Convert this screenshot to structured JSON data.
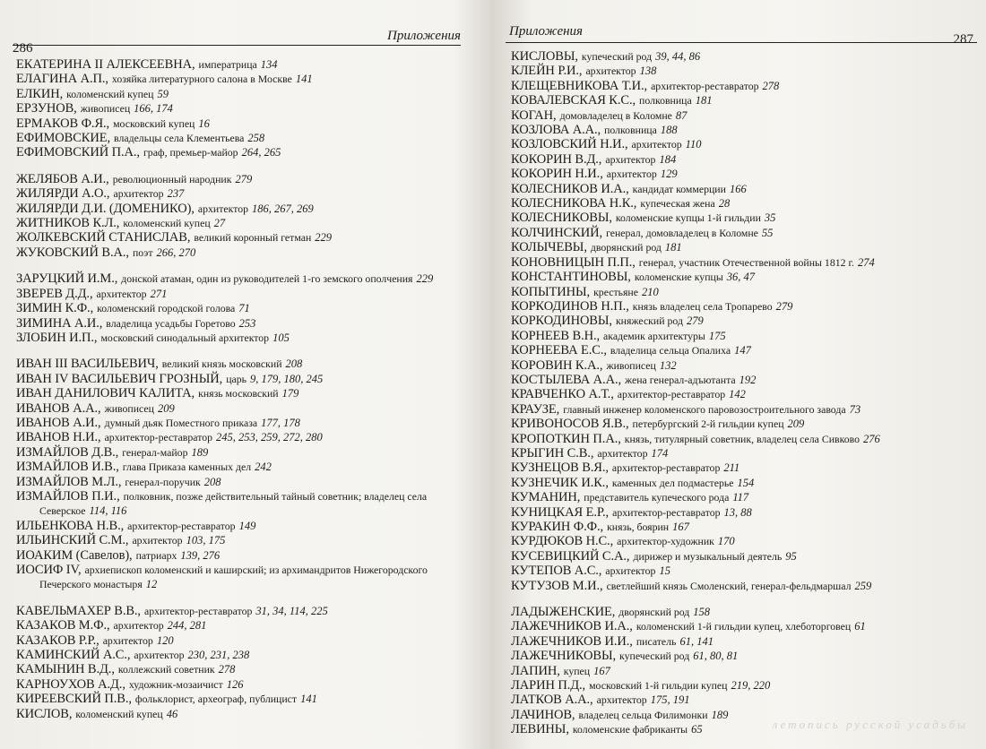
{
  "left_page": {
    "header": "Приложения",
    "page_number": "286",
    "groups": [
      [
        {
          "name": "ЕКАТЕРИНА II АЛЕКСЕЕВНА,",
          "desc": "императрица",
          "pages": "134"
        },
        {
          "name": "ЕЛАГИНА А.П.,",
          "desc": "хозяйка литературного салона в Москве",
          "pages": "141"
        },
        {
          "name": "ЕЛКИН,",
          "desc": "коломенский купец",
          "pages": "59"
        },
        {
          "name": "ЕРЗУНОВ,",
          "desc": "живописец",
          "pages": "166, 174"
        },
        {
          "name": "ЕРМАКОВ Ф.Я.,",
          "desc": "московский купец",
          "pages": "16"
        },
        {
          "name": "ЕФИМОВСКИЕ,",
          "desc": "владельцы села Клементьева",
          "pages": "258"
        },
        {
          "name": "ЕФИМОВСКИЙ П.А.,",
          "desc": "граф, премьер-майор",
          "pages": "264, 265"
        }
      ],
      [
        {
          "name": "ЖЕЛЯБОВ А.И.,",
          "desc": "революционный народник",
          "pages": "279"
        },
        {
          "name": "ЖИЛЯРДИ А.О.,",
          "desc": "архитектор",
          "pages": "237"
        },
        {
          "name": "ЖИЛЯРДИ Д.И. (ДОМЕНИКО),",
          "desc": "архитектор",
          "pages": "186, 267, 269"
        },
        {
          "name": "ЖИТНИКОВ К.Л.,",
          "desc": "коломенский купец",
          "pages": "27"
        },
        {
          "name": "ЖОЛКЕВСКИЙ СТАНИСЛАВ,",
          "desc": "великий коронный гетман",
          "pages": "229"
        },
        {
          "name": "ЖУКОВСКИЙ В.А.,",
          "desc": "поэт",
          "pages": "266, 270"
        }
      ],
      [
        {
          "name": "ЗАРУЦКИЙ И.М.,",
          "desc": "донской атаман, один из руководителей 1-го земского ополчения",
          "pages": "229"
        },
        {
          "name": "ЗВЕРЕВ Д.Д.,",
          "desc": "архитектор",
          "pages": "271"
        },
        {
          "name": "ЗИМИН К.Ф.,",
          "desc": "коломенский городской голова",
          "pages": "71"
        },
        {
          "name": "ЗИМИНА А.И.,",
          "desc": "владелица усадьбы Горетово",
          "pages": "253"
        },
        {
          "name": "ЗЛОБИН И.П.,",
          "desc": "московский синодальный архитектор",
          "pages": "105"
        }
      ],
      [
        {
          "name": "ИВАН III ВАСИЛЬЕВИЧ,",
          "desc": "великий князь московский",
          "pages": "208"
        },
        {
          "name": "ИВАН IV ВАСИЛЬЕВИЧ ГРОЗНЫЙ,",
          "desc": "царь",
          "pages": "9, 179, 180, 245"
        },
        {
          "name": "ИВАН ДАНИЛОВИЧ КАЛИТА,",
          "desc": "князь московский",
          "pages": "179"
        },
        {
          "name": "ИВАНОВ А.А.,",
          "desc": "живописец",
          "pages": "209"
        },
        {
          "name": "ИВАНОВ А.И.,",
          "desc": "думный дьяк Поместного приказа",
          "pages": "177, 178"
        },
        {
          "name": "ИВАНОВ Н.И.,",
          "desc": "архитектор-реставратор",
          "pages": "245, 253, 259, 272, 280"
        },
        {
          "name": "ИЗМАЙЛОВ Д.В.,",
          "desc": "генерал-майор",
          "pages": "189"
        },
        {
          "name": "ИЗМАЙЛОВ И.В.,",
          "desc": "глава Приказа каменных дел",
          "pages": "242"
        },
        {
          "name": "ИЗМАЙЛОВ М.Л.,",
          "desc": "генерал-поручик",
          "pages": "208"
        },
        {
          "name": "ИЗМАЙЛОВ П.И.,",
          "desc": "полковник, позже действительный тайный советник; владелец села Северское",
          "pages": "114, 116"
        },
        {
          "name": "ИЛЬЕНКОВА Н.В.,",
          "desc": "архитектор-реставратор",
          "pages": "149"
        },
        {
          "name": "ИЛЬИНСКИЙ С.М.,",
          "desc": "архитектор",
          "pages": "103, 175"
        },
        {
          "name": "ИОАКИМ (Савелов),",
          "desc": "патриарх",
          "pages": "139, 276"
        },
        {
          "name": "ИОСИФ IV,",
          "desc": "архиепископ коломенский и каширский; из архимандритов Нижегородского Печерского монастыря",
          "pages": "12"
        }
      ],
      [
        {
          "name": "КАВЕЛЬМАХЕР В.В.,",
          "desc": "архитектор-реставратор",
          "pages": "31, 34, 114, 225"
        },
        {
          "name": "КАЗАКОВ М.Ф.,",
          "desc": "архитектор",
          "pages": "244, 281"
        },
        {
          "name": "КАЗАКОВ Р.Р.,",
          "desc": "архитектор",
          "pages": "120"
        },
        {
          "name": "КАМИНСКИЙ А.С.,",
          "desc": "архитектор",
          "pages": "230, 231, 238"
        },
        {
          "name": "КАМЫНИН В.Д.,",
          "desc": "коллежский советник",
          "pages": "278"
        },
        {
          "name": "КАРНОУХОВ А.Д.,",
          "desc": "художник-мозаичист",
          "pages": "126"
        },
        {
          "name": "КИРЕЕВСКИЙ П.В.,",
          "desc": "фольклорист, археограф, публицист",
          "pages": "141"
        },
        {
          "name": "КИСЛОВ,",
          "desc": "коломенский купец",
          "pages": "46"
        }
      ]
    ]
  },
  "right_page": {
    "header": "Приложения",
    "page_number": "287",
    "footer": "летопись русской усадьбы",
    "groups": [
      [
        {
          "name": "КИСЛОВЫ,",
          "desc": "купеческий род",
          "pages": "39, 44, 86"
        },
        {
          "name": "КЛЕЙН Р.И.,",
          "desc": "архитектор",
          "pages": "138"
        },
        {
          "name": "КЛЕЩЕВНИКОВА Т.И.,",
          "desc": "архитектор-реставратор",
          "pages": "278"
        },
        {
          "name": "КОВАЛЕВСКАЯ К.С.,",
          "desc": "полковница",
          "pages": "181"
        },
        {
          "name": "КОГАН,",
          "desc": "домовладелец в Коломне",
          "pages": "87"
        },
        {
          "name": "КОЗЛОВА А.А.,",
          "desc": "полковница",
          "pages": "188"
        },
        {
          "name": "КОЗЛОВСКИЙ Н.И.,",
          "desc": "архитектор",
          "pages": "110"
        },
        {
          "name": "КОКОРИН В.Д.,",
          "desc": "архитектор",
          "pages": "184"
        },
        {
          "name": "КОКОРИН Н.И.,",
          "desc": "архитектор",
          "pages": "129"
        },
        {
          "name": "КОЛЕСНИКОВ И.А.,",
          "desc": "кандидат коммерции",
          "pages": "166"
        },
        {
          "name": "КОЛЕСНИКОВА Н.К.,",
          "desc": "купеческая жена",
          "pages": "28"
        },
        {
          "name": "КОЛЕСНИКОВЫ,",
          "desc": "коломенские купцы 1-й гильдии",
          "pages": "35"
        },
        {
          "name": "КОЛЧИНСКИЙ,",
          "desc": "генерал, домовладелец в Коломне",
          "pages": "55"
        },
        {
          "name": "КОЛЫЧЕВЫ,",
          "desc": "дворянский род",
          "pages": "181"
        },
        {
          "name": "КОНОВНИЦЫН П.П.,",
          "desc": "генерал, участник Отечественной войны 1812 г.",
          "pages": "274"
        },
        {
          "name": "КОНСТАНТИНОВЫ,",
          "desc": "коломенские купцы",
          "pages": "36, 47"
        },
        {
          "name": "КОПЫТИНЫ,",
          "desc": "крестьяне",
          "pages": "210"
        },
        {
          "name": "КОРКОДИНОВ Н.П.,",
          "desc": "князь владелец села Тропарево",
          "pages": "279"
        },
        {
          "name": "КОРКОДИНОВЫ,",
          "desc": "княжеский род",
          "pages": "279"
        },
        {
          "name": "КОРНЕЕВ В.Н.,",
          "desc": "академик архитектуры",
          "pages": "175"
        },
        {
          "name": "КОРНЕЕВА Е.С.,",
          "desc": "владелица сельца Опалиха",
          "pages": "147"
        },
        {
          "name": "КОРОВИН К.А.,",
          "desc": "живописец",
          "pages": "132"
        },
        {
          "name": "КОСТЫЛЕВА А.А.,",
          "desc": "жена генерал-адъютанта",
          "pages": "192"
        },
        {
          "name": "КРАВЧЕНКО А.Т.,",
          "desc": "архитектор-реставратор",
          "pages": "142"
        },
        {
          "name": "КРАУЗЕ,",
          "desc": "главный инженер коломенского паровозостроительного завода",
          "pages": "73"
        },
        {
          "name": "КРИВОНОСОВ Я.В.,",
          "desc": "петербургский 2-й гильдии купец",
          "pages": "209"
        },
        {
          "name": "КРОПОТКИН П.А.,",
          "desc": "князь, титулярный советник, владелец села Сивково",
          "pages": "276"
        },
        {
          "name": "КРЫГИН С.В.,",
          "desc": "архитектор",
          "pages": "174"
        },
        {
          "name": "КУЗНЕЦОВ В.Я.,",
          "desc": "архитектор-реставратор",
          "pages": "211"
        },
        {
          "name": "КУЗНЕЧИК И.К.,",
          "desc": "каменных дел подмастерье",
          "pages": "154"
        },
        {
          "name": "КУМАНИН,",
          "desc": "представитель купеческого рода",
          "pages": "117"
        },
        {
          "name": "КУНИЦКАЯ Е.Р.,",
          "desc": "архитектор-реставратор",
          "pages": "13, 88"
        },
        {
          "name": "КУРАКИН Ф.Ф.,",
          "desc": "князь, боярин",
          "pages": "167"
        },
        {
          "name": "КУРДЮКОВ Н.С.,",
          "desc": "архитектор-художник",
          "pages": "170"
        },
        {
          "name": "КУСЕВИЦКИЙ С.А.,",
          "desc": "дирижер и музыкальный деятель",
          "pages": "95"
        },
        {
          "name": "КУТЕПОВ А.С.,",
          "desc": "архитектор",
          "pages": "15"
        },
        {
          "name": "КУТУЗОВ М.И.,",
          "desc": "светлейший князь Смоленский, генерал-фельдмаршал",
          "pages": "259"
        }
      ],
      [
        {
          "name": "ЛАДЫЖЕНСКИЕ,",
          "desc": "дворянский род",
          "pages": "158"
        },
        {
          "name": "ЛАЖЕЧНИКОВ И.А.,",
          "desc": "коломенский 1-й гильдии купец, хлеботорговец",
          "pages": "61"
        },
        {
          "name": "ЛАЖЕЧНИКОВ И.И.,",
          "desc": "писатель",
          "pages": "61, 141"
        },
        {
          "name": "ЛАЖЕЧНИКОВЫ,",
          "desc": "купеческий род",
          "pages": "61, 80, 81"
        },
        {
          "name": "ЛАПИН,",
          "desc": "купец",
          "pages": "167"
        },
        {
          "name": "ЛАРИН П.Д.,",
          "desc": "московский 1-й гильдии купец",
          "pages": "219, 220"
        },
        {
          "name": "ЛАТКОВ А.А.,",
          "desc": "архитектор",
          "pages": "175, 191"
        },
        {
          "name": "ЛАЧИНОВ,",
          "desc": "владелец сельца Филимонки",
          "pages": "189"
        },
        {
          "name": "ЛЕВИНЫ,",
          "desc": "коломенские фабриканты",
          "pages": "65"
        }
      ]
    ]
  }
}
